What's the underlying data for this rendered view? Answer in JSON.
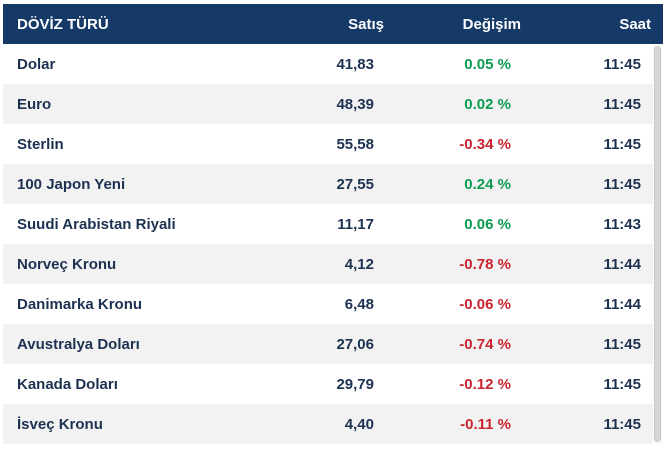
{
  "table": {
    "headers": [
      "DÖVİZ TÜRÜ",
      "Satış",
      "Değişim",
      "Saat"
    ],
    "rows": [
      {
        "currency": "Dolar",
        "satis": "41,83",
        "degisim": "0.05 %",
        "saat": "11:45"
      },
      {
        "currency": "Euro",
        "satis": "48,39",
        "degisim": "0.02 %",
        "saat": "11:45"
      },
      {
        "currency": "Sterlin",
        "satis": "55,58",
        "degisim": "-0.34 %",
        "saat": "11:45"
      },
      {
        "currency": "100 Japon Yeni",
        "satis": "27,55",
        "degisim": "0.24 %",
        "saat": "11:45"
      },
      {
        "currency": "Suudi Arabistan Riyali",
        "satis": "11,17",
        "degisim": "0.06 %",
        "saat": "11:43"
      },
      {
        "currency": "Norveç Kronu",
        "satis": "4,12",
        "degisim": "-0.78 %",
        "saat": "11:44"
      },
      {
        "currency": "Danimarka Kronu",
        "satis": "6,48",
        "degisim": "-0.06 %",
        "saat": "11:44"
      },
      {
        "currency": "Avustralya Doları",
        "satis": "27,06",
        "degisim": "-0.74 %",
        "saat": "11:45"
      },
      {
        "currency": "Kanada Doları",
        "satis": "29,79",
        "degisim": "-0.12 %",
        "saat": "11:45"
      },
      {
        "currency": "İsveç Kronu",
        "satis": "4,40",
        "degisim": "-0.11 %",
        "saat": "11:45"
      }
    ]
  },
  "chart_data": {
    "type": "table",
    "title": "DÖVİZ TÜRÜ",
    "columns": [
      "DÖVİZ TÜRÜ",
      "Satış",
      "Değişim",
      "Saat"
    ],
    "categories": [
      "Dolar",
      "Euro",
      "Sterlin",
      "100 Japon Yeni",
      "Suudi Arabistan Riyali",
      "Norveç Kronu",
      "Danimarka Kronu",
      "Avustralya Doları",
      "Kanada Doları",
      "İsveç Kronu"
    ],
    "series": [
      {
        "name": "Satış",
        "values": [
          41.83,
          48.39,
          55.58,
          27.55,
          11.17,
          4.12,
          6.48,
          27.06,
          29.79,
          4.4
        ]
      },
      {
        "name": "Değişim (%)",
        "values": [
          0.05,
          0.02,
          -0.34,
          0.24,
          0.06,
          -0.78,
          -0.06,
          -0.74,
          -0.12,
          -0.11
        ]
      },
      {
        "name": "Saat",
        "values": [
          "11:45",
          "11:45",
          "11:45",
          "11:45",
          "11:43",
          "11:44",
          "11:44",
          "11:45",
          "11:45",
          "11:45"
        ]
      }
    ]
  },
  "colors": {
    "header_bg": "#153A68",
    "text": "#1D3150",
    "positive": "#0D9B51",
    "negative": "#C9242F",
    "row_alt": "#F2F2F2"
  }
}
